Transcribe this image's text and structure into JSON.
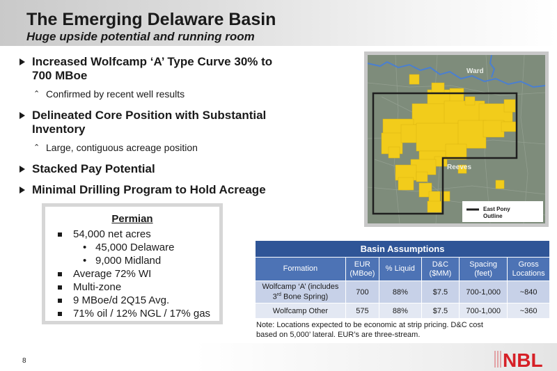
{
  "header": {
    "title": "The Emerging Delaware Basin",
    "subtitle": "Huge upside potential and running room"
  },
  "bullets": [
    {
      "text": "Increased Wolfcamp ‘A’ Type Curve 30% to 700 MBoe",
      "sub": "Confirmed by recent well results"
    },
    {
      "text": "Delineated Core Position with Substantial Inventory",
      "sub": "Large, contiguous acreage position"
    },
    {
      "text": "Stacked Pay Potential",
      "sub": ""
    },
    {
      "text": "Minimal Drilling Program to Hold Acreage",
      "sub": ""
    }
  ],
  "permian": {
    "title": "Permian",
    "net_acres": "54,000 net acres",
    "delaware": "45,000 Delaware",
    "midland": "9,000 Midland",
    "wi": "Average 72% WI",
    "multizone": "Multi-zone",
    "production": "9 MBoe/d 2Q15 Avg.",
    "mix": "71% oil / 12% NGL / 17% gas"
  },
  "map": {
    "label_ward": "Ward",
    "label_reeves": "Reeves",
    "legend_line1": "East Pony",
    "legend_line2": "Outline",
    "colors": {
      "acreage": "#f2cc1b",
      "river": "#4a7fd1",
      "outline": "#1f1f1f",
      "terrain": "#7e8c7b"
    }
  },
  "table": {
    "caption": "Basin Assumptions",
    "headers": {
      "formation": "Formation",
      "eur_1": "EUR",
      "eur_2": "(MBoe)",
      "liquid": "% Liquid",
      "dc_1": "D&C",
      "dc_2": "($MM)",
      "spacing_1": "Spacing",
      "spacing_2": "(feet)",
      "gross_1": "Gross",
      "gross_2": "Locations"
    },
    "row1": {
      "formation_1": "Wolfcamp ‘A’ (includes",
      "formation_2a": "3",
      "formation_2sup": "rd",
      "formation_2b": " Bone Spring)",
      "eur": "700",
      "liquid": "88%",
      "dc": "$7.5",
      "spacing": "700-1,000",
      "gross": "~840"
    },
    "row2": {
      "formation": "Wolfcamp Other",
      "eur": "575",
      "liquid": "88%",
      "dc": "$7.5",
      "spacing": "700-1,000",
      "gross": "~360"
    },
    "colors": {
      "caption_bg": "#2f5597",
      "header_bg": "#4d73b5",
      "row1_bg": "#c7d1e8",
      "row2_bg": "#e3e8f3"
    }
  },
  "note": {
    "line1": "Note: Locations expected to be economic at strip pricing. D&C cost",
    "line2": "based on 5,000’ lateral. EUR’s are three-stream."
  },
  "page_number": "8",
  "logo": {
    "text": "NBL",
    "color": "#d62027"
  }
}
